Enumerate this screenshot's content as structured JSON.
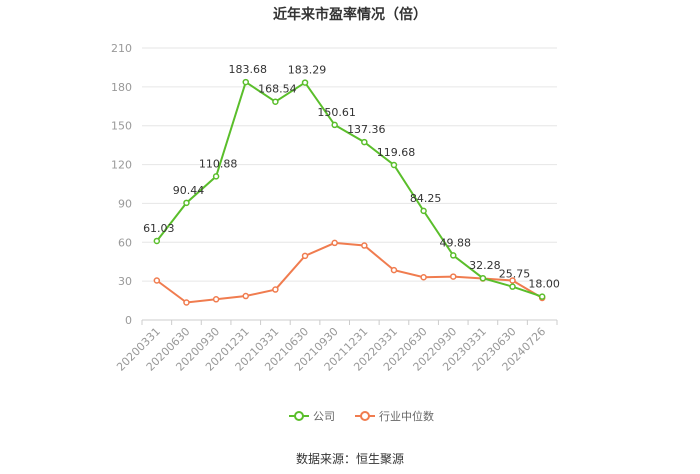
{
  "chart_title": "近年来市盈率情况（倍）",
  "source_note": "数据来源：恒生聚源",
  "colors": {
    "company": "#5ABE2B",
    "industry": "#F07C4F",
    "grid": "#e6e6e6",
    "axis": "#cccccc"
  },
  "chart_data": {
    "type": "line",
    "title": "近年来市盈率情况（倍）",
    "xlabel": "",
    "ylabel": "",
    "ylim": [
      0,
      210
    ],
    "yticks": [
      0,
      30,
      60,
      90,
      120,
      150,
      180,
      210
    ],
    "grid": true,
    "legend_position": "bottom",
    "categories": [
      "20200331",
      "20200630",
      "20200930",
      "20201231",
      "20210331",
      "20210630",
      "20210930",
      "20211231",
      "20220331",
      "20220630",
      "20220930",
      "20230331",
      "20230630",
      "20240726"
    ],
    "series": [
      {
        "name": "公司",
        "color": "#5ABE2B",
        "show_labels": true,
        "values": [
          61.03,
          90.44,
          110.88,
          183.68,
          168.54,
          183.29,
          150.61,
          137.36,
          119.68,
          84.25,
          49.88,
          32.28,
          25.75,
          18.0
        ],
        "labels": [
          "61.03",
          "90.44",
          "110.88",
          "183.68",
          "168.54",
          "183.29",
          "150.61",
          "137.36",
          "119.68",
          "84.25",
          "49.88",
          "32.28",
          "25.75",
          "18.00"
        ]
      },
      {
        "name": "行业中位数",
        "color": "#F07C4F",
        "show_labels": false,
        "values": [
          30.5,
          13.5,
          16.0,
          18.5,
          23.5,
          49.5,
          59.5,
          57.5,
          38.5,
          33.0,
          33.5,
          32.0,
          30.5,
          17.0
        ]
      }
    ]
  }
}
